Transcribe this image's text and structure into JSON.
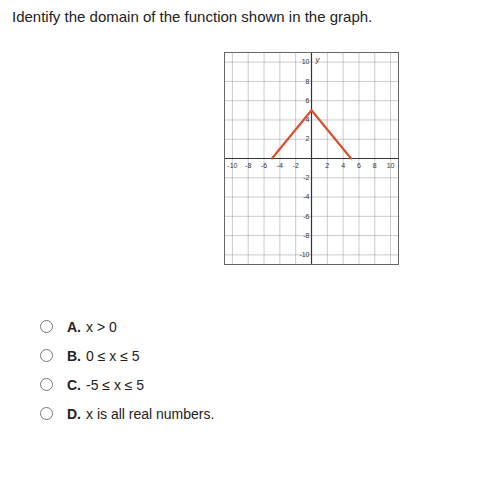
{
  "question": "Identify the domain of the function shown in the graph.",
  "chart_data": {
    "type": "line",
    "ylabel": "y",
    "x": [
      -5,
      0,
      5
    ],
    "values": [
      0,
      5,
      0
    ],
    "color": "#d9502f",
    "xlim": [
      -11,
      11
    ],
    "ylim": [
      -11,
      11
    ],
    "xticks": [
      -10,
      -8,
      -6,
      -4,
      -2,
      2,
      4,
      6,
      8,
      10
    ],
    "yticks": [
      -10,
      -8,
      -6,
      -4,
      -2,
      2,
      4,
      6,
      8,
      10
    ],
    "grid": true
  },
  "options": [
    {
      "letter": "A.",
      "text": "x > 0"
    },
    {
      "letter": "B.",
      "text": "0 ≤ x ≤ 5"
    },
    {
      "letter": "C.",
      "text": "-5 ≤ x ≤ 5"
    },
    {
      "letter": "D.",
      "text": "x is all real numbers."
    }
  ]
}
